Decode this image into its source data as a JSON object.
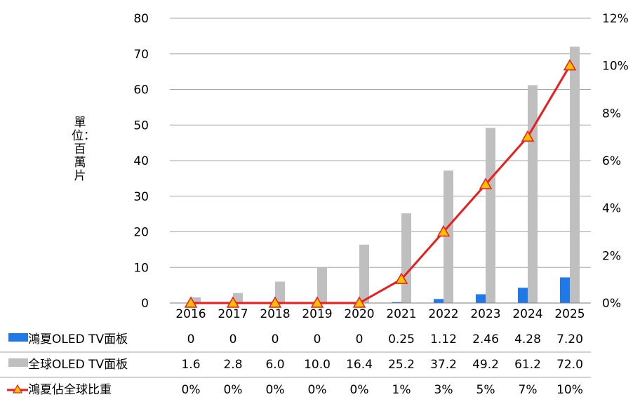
{
  "chart_data": {
    "type": "bar",
    "categories": [
      "2016",
      "2017",
      "2018",
      "2019",
      "2020",
      "2021",
      "2022",
      "2023",
      "2024",
      "2025"
    ],
    "series": [
      {
        "name": "鴻夏OLED TV面板",
        "kind": "bar",
        "axis": "left",
        "color": "#1f7ae8",
        "values": [
          0,
          0,
          0,
          0,
          0,
          0.25,
          1.12,
          2.46,
          4.28,
          7.2
        ],
        "table_values": [
          "0",
          "0",
          "0",
          "0",
          "0",
          "0.25",
          "1.12",
          "2.46",
          "4.28",
          "7.20"
        ]
      },
      {
        "name": "全球OLED TV面板",
        "kind": "bar",
        "axis": "left",
        "color": "#bfbfbf",
        "values": [
          1.6,
          2.8,
          6.0,
          10.0,
          16.4,
          25.2,
          37.2,
          49.2,
          61.2,
          72.0
        ],
        "table_values": [
          "1.6",
          "2.8",
          "6.0",
          "10.0",
          "16.4",
          "25.2",
          "37.2",
          "49.2",
          "61.2",
          "72.0"
        ]
      },
      {
        "name": "鴻夏佔全球比重",
        "kind": "line",
        "axis": "right",
        "color": "#ee1c1c",
        "marker_color": "#ffc000",
        "values": [
          0,
          0,
          0,
          0,
          0,
          1,
          3,
          5,
          7,
          10
        ],
        "table_values": [
          "0%",
          "0%",
          "0%",
          "0%",
          "0%",
          "1%",
          "3%",
          "5%",
          "7%",
          "10%"
        ]
      }
    ],
    "ylabel": "單位：百萬片",
    "ylim": [
      0,
      80
    ],
    "yticks": [
      "0",
      "10",
      "20",
      "30",
      "40",
      "50",
      "60",
      "70",
      "80"
    ],
    "y2lim": [
      0,
      12
    ],
    "y2ticks": [
      "0%",
      "2%",
      "4%",
      "6%",
      "8%",
      "10%",
      "12%"
    ],
    "grid": true,
    "legend": "data table"
  }
}
